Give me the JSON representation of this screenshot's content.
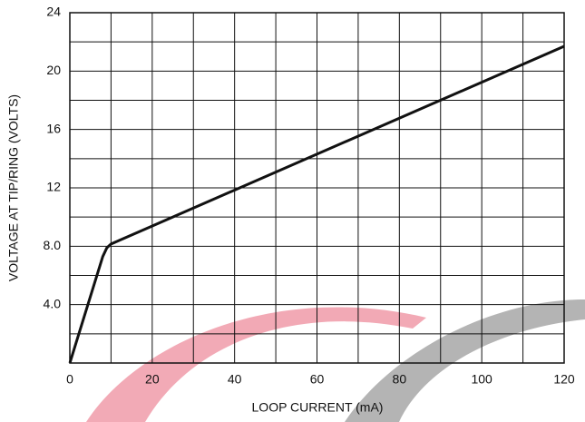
{
  "chart_data": {
    "type": "line",
    "x_label": "LOOP CURRENT (mA)",
    "y_label": "VOLTAGE AT TIP/RING (VOLTS)",
    "x": [
      0,
      8,
      9,
      10,
      12,
      120
    ],
    "series": [
      {
        "color": "#111111",
        "values": [
          0,
          7.3,
          7.9,
          8.15,
          8.4,
          21.7
        ]
      }
    ],
    "xlim": [
      0,
      120
    ],
    "ylim": [
      0,
      24
    ],
    "xticks": [
      0,
      20,
      40,
      60,
      80,
      100,
      120
    ],
    "yticks": [
      {
        "value": 4,
        "label": "4.0"
      },
      {
        "value": 8,
        "label": "8.0"
      },
      12,
      16,
      20,
      24
    ],
    "xgrid_step": 10,
    "ygrid_step": 2,
    "grid": true
  }
}
